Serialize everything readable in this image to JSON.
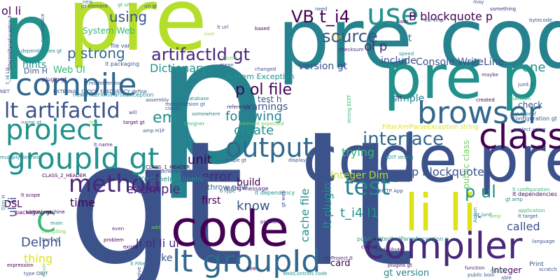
{
  "palette": {
    "navy": "#3b528b",
    "indigo": "#482878",
    "purple": "#440154",
    "blue": "#31688e",
    "teal": "#26828e",
    "sea": "#21918c",
    "green": "#35b779",
    "lime": "#6ece58",
    "chartreuse": "#b5de2b",
    "yellow": "#dde318"
  },
  "words": [
    {
      "text": "p",
      "color": "teal"
    },
    {
      "text": "gt lt",
      "color": "navy"
    },
    {
      "text": "pre code",
      "color": "teal"
    },
    {
      "text": "pre",
      "color": "chartreuse"
    },
    {
      "text": "code pre",
      "color": "navy"
    },
    {
      "text": "pre p",
      "color": "sea"
    },
    {
      "text": "p",
      "color": "sea"
    },
    {
      "text": "code",
      "color": "purple"
    },
    {
      "text": "li li",
      "color": "yellow"
    },
    {
      "text": "compiler",
      "color": "indigo"
    },
    {
      "text": "lt groupId",
      "color": "blue"
    },
    {
      "text": "class",
      "color": "purple"
    },
    {
      "text": "browser",
      "color": "blue"
    },
    {
      "text": "use",
      "color": "sea"
    },
    {
      "text": "project",
      "color": "sea"
    },
    {
      "text": "groupId gt",
      "color": "sea"
    },
    {
      "text": "compile",
      "color": "blue"
    },
    {
      "text": "lt artifactId",
      "color": "navy"
    },
    {
      "text": "method",
      "color": "indigo"
    },
    {
      "text": "output",
      "color": "blue"
    },
    {
      "text": "test",
      "color": "teal"
    },
    {
      "text": "p ul",
      "color": "sea"
    },
    {
      "text": "interface",
      "color": "blue"
    },
    {
      "text": "source",
      "color": "navy"
    },
    {
      "text": "artifactId gt",
      "color": "indigo"
    },
    {
      "text": "p ol file",
      "color": "purple"
    },
    {
      "text": "VB t_i4",
      "color": "purple"
    },
    {
      "text": "B blockquote p",
      "color": "purple"
    },
    {
      "text": "C",
      "color": "green"
    },
    {
      "text": "p strong",
      "color": "blue"
    },
    {
      "text": "using",
      "color": "navy"
    },
    {
      "text": "ol li",
      "color": "purple"
    },
    {
      "text": "em",
      "color": "sea"
    },
    {
      "text": "create",
      "color": "sea"
    },
    {
      "text": "following",
      "color": "teal"
    },
    {
      "text": "warnings",
      "color": "navy"
    },
    {
      "text": "one",
      "color": "sea"
    },
    {
      "text": "ol p",
      "color": "indigo"
    },
    {
      "text": "unit",
      "color": "purple"
    },
    {
      "text": "example",
      "color": "indigo"
    },
    {
      "text": "Delphi",
      "color": "navy"
    },
    {
      "text": "error",
      "color": "indigo"
    },
    {
      "text": "know",
      "color": "navy"
    },
    {
      "text": "time",
      "color": "purple"
    },
    {
      "text": "t_i4 l1",
      "color": "sea"
    },
    {
      "text": "called",
      "color": "navy"
    },
    {
      "text": "li ol li ul",
      "color": "indigo"
    },
    {
      "text": "thing",
      "color": "yellow"
    },
    {
      "text": "cache file",
      "color": "sea"
    },
    {
      "text": "lt plugin",
      "color": "sea"
    },
    {
      "text": "Integer Dim",
      "color": "chartreuse"
    },
    {
      "text": "p blockquote",
      "color": "navy"
    },
    {
      "text": "Dictionary",
      "color": "sea"
    },
    {
      "text": "include",
      "color": "navy"
    },
    {
      "text": "version gt",
      "color": "navy"
    },
    {
      "text": "Console WriteLine",
      "color": "navy"
    },
    {
      "text": "simple",
      "color": "teal"
    },
    {
      "text": "trying",
      "color": "green"
    },
    {
      "text": "int",
      "color": "teal"
    },
    {
      "text": "ul li",
      "color": "navy"
    },
    {
      "text": "build",
      "color": "purple"
    },
    {
      "text": "first",
      "color": "purple"
    },
    {
      "text": "make",
      "color": "navy"
    },
    {
      "text": "hints",
      "color": "sea"
    },
    {
      "text": "Web UI",
      "color": "green"
    },
    {
      "text": "System Web",
      "color": "green"
    },
    {
      "text": "DSL",
      "color": "purple"
    },
    {
      "text": "Integer",
      "color": "purple"
    },
    {
      "text": "gt version",
      "color": "teal"
    },
    {
      "text": "card",
      "color": "purple"
    },
    {
      "text": "System Exception",
      "color": "sea"
    },
    {
      "text": "IXmlLineInfo lineInfo",
      "color": "sea"
    },
    {
      "text": "FilterXmlParseException string",
      "color": "yellow"
    },
    {
      "text": "public class",
      "color": "lime"
    },
    {
      "text": "check",
      "color": "navy"
    },
    {
      "text": "test h",
      "color": "navy"
    },
    {
      "text": "Dim H",
      "color": "navy"
    },
    {
      "text": "throw new",
      "color": "blue"
    },
    {
      "text": "new FilterXmlParseException",
      "color": "sea"
    },
    {
      "text": "public FilterXmlParseException p",
      "color": "sea"
    },
    {
      "text": "configuration gt",
      "color": "navy"
    },
    {
      "text": "lt dependencies",
      "color": "purple"
    },
    {
      "text": "lt packaging",
      "color": "navy"
    },
    {
      "text": "file var",
      "color": "navy"
    },
    {
      "text": "string message",
      "color": "indigo"
    },
    {
      "text": "CLASS_1_HEADER",
      "color": "purple"
    },
    {
      "text": "CLASS_2_HEADER",
      "color": "purple"
    },
    {
      "text": "virtual machine",
      "color": "purple"
    },
    {
      "text": "packaging gt",
      "color": "purple"
    },
    {
      "text": "lt scope",
      "color": "purple"
    },
    {
      "text": "plugin gt",
      "color": "indigo"
    },
    {
      "text": "gt element",
      "color": "navy"
    },
    {
      "text": "lt name",
      "color": "indigo"
    },
    {
      "text": "name gt",
      "color": "teal"
    },
    {
      "text": "target gt",
      "color": "purple"
    },
    {
      "text": "lt dependency",
      "color": "sea"
    },
    {
      "text": "scope gt",
      "color": "navy"
    },
    {
      "text": "project using",
      "color": "navy"
    },
    {
      "text": "lt configuration",
      "color": "green"
    },
    {
      "text": "lt target",
      "color": "navy"
    },
    {
      "text": "gt typeof",
      "color": "teal"
    },
    {
      "text": "junit lt",
      "color": "navy"
    },
    {
      "text": "bytecode",
      "color": "navy"
    },
    {
      "text": "Print",
      "color": "navy"
    },
    {
      "text": "scratch",
      "color": "navy"
    },
    {
      "text": "language",
      "color": "navy"
    },
    {
      "text": "public bool",
      "color": "navy"
    },
    {
      "text": "function",
      "color": "indigo"
    },
    {
      "text": "plugins gt",
      "color": "purple"
    },
    {
      "text": "myProject lt",
      "color": "indigo"
    },
    {
      "text": "code ifndef",
      "color": "indigo"
    },
    {
      "text": "WebControls code",
      "color": "sea"
    },
    {
      "text": "lt Filter",
      "color": "sea"
    },
    {
      "text": "type OBJT",
      "color": "navy"
    },
    {
      "text": "expression",
      "color": "purple"
    },
    {
      "text": "see",
      "color": "purple"
    },
    {
      "text": "course",
      "color": "purple"
    },
    {
      "text": "problem",
      "color": "purple"
    },
    {
      "text": "exists",
      "color": "purple"
    },
    {
      "text": "even",
      "color": "indigo"
    },
    {
      "text": "main",
      "color": "sea"
    },
    {
      "text": "compiling",
      "color": "lime"
    },
    {
      "text": "Dim VB",
      "color": "navy"
    },
    {
      "text": "add",
      "color": "lime"
    },
    {
      "text": "possible",
      "color": "indigo"
    },
    {
      "text": "database",
      "color": "sea"
    },
    {
      "text": "assembly",
      "color": "navy"
    },
    {
      "text": "reference",
      "color": "indigo"
    },
    {
      "text": "element expected",
      "color": "lime"
    },
    {
      "text": "o type",
      "color": "blue"
    },
    {
      "text": "display",
      "color": "navy"
    },
    {
      "text": "lt modelVersion",
      "color": "navy"
    },
    {
      "text": "amp H1F",
      "color": "navy"
    },
    {
      "text": "somewhere",
      "color": "teal"
    },
    {
      "text": "designer",
      "color": "green"
    },
    {
      "text": "mean",
      "color": "navy"
    },
    {
      "text": "found",
      "color": "lime"
    },
    {
      "text": "changed",
      "color": "navy"
    },
    {
      "text": "based",
      "color": "purple"
    },
    {
      "text": "href",
      "color": "chartreuse"
    },
    {
      "text": "lt url",
      "color": "navy"
    },
    {
      "text": "uri gt",
      "color": "navy"
    },
    {
      "text": "user",
      "color": "purple"
    },
    {
      "text": "need",
      "color": "navy"
    },
    {
      "text": "var tmp",
      "color": "navy"
    },
    {
      "text": "may",
      "color": "navy"
    },
    {
      "text": "something",
      "color": "indigo"
    },
    {
      "text": "speed",
      "color": "sea"
    },
    {
      "text": "maybe",
      "color": "indigo"
    },
    {
      "text": "question",
      "color": "green"
    },
    {
      "text": "hr",
      "color": "purple"
    },
    {
      "text": "created",
      "color": "purple"
    },
    {
      "text": "application",
      "color": "green"
    },
    {
      "text": "gt amp",
      "color": "teal"
    },
    {
      "text": "gt junit",
      "color": "teal"
    },
    {
      "text": "Action",
      "color": "teal"
    },
    {
      "text": "EDIT strong",
      "color": "sea"
    },
    {
      "text": "strong EDIT",
      "color": "green"
    },
    {
      "text": "multiply defined",
      "color": "teal"
    },
    {
      "text": "Dim H",
      "color": "sea"
    },
    {
      "text": "NET",
      "color": "navy"
    },
    {
      "text": "new",
      "color": "teal"
    },
    {
      "text": "gt url",
      "color": "green"
    },
    {
      "text": "though",
      "color": "teal"
    },
    {
      "text": "lt gt",
      "color": "yellow"
    },
    {
      "text": "checksum",
      "color": "indigo"
    },
    {
      "text": "namespace",
      "color": "navy"
    },
    {
      "text": "dependencies gt",
      "color": "teal"
    },
    {
      "text": "t_i4 L0",
      "color": "navy"
    },
    {
      "text": "EXTERNAL_CLOCK_FREQUENCY define",
      "color": "navy"
    },
    {
      "text": "FilterXmlParseException lt",
      "color": "indigo"
    },
    {
      "text": "lt modelVersion",
      "color": "navy"
    },
    {
      "text": "will",
      "color": "navy"
    },
    {
      "text": "try",
      "color": "lime"
    },
    {
      "text": "class2",
      "color": "navy"
    },
    {
      "text": "modelVersion gt",
      "color": "navy"
    },
    {
      "text": "gt web",
      "color": "navy"
    },
    {
      "text": "HTTP App",
      "color": "navy"
    },
    {
      "text": "give",
      "color": "navy"
    },
    {
      "text": "never",
      "color": "lime"
    },
    {
      "text": "amp",
      "color": "lime"
    },
    {
      "text": "modify",
      "color": "green"
    },
    {
      "text": "able",
      "color": "navy"
    },
    {
      "text": "x",
      "color": "purple"
    }
  ]
}
